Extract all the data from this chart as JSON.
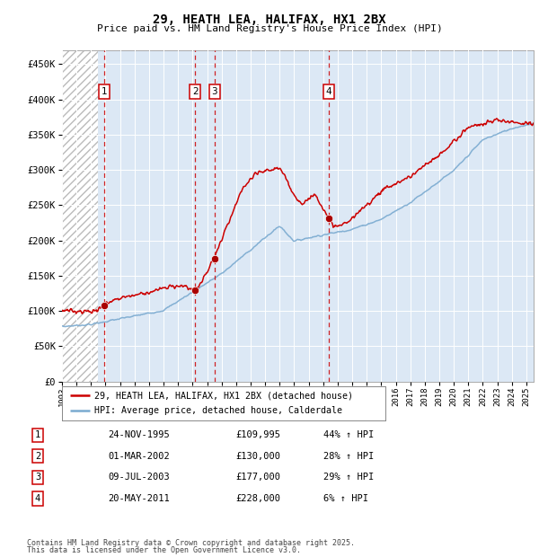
{
  "title": "29, HEATH LEA, HALIFAX, HX1 2BX",
  "subtitle": "Price paid vs. HM Land Registry's House Price Index (HPI)",
  "ylabel_ticks": [
    "£0",
    "£50K",
    "£100K",
    "£150K",
    "£200K",
    "£250K",
    "£300K",
    "£350K",
    "£400K",
    "£450K"
  ],
  "ytick_values": [
    0,
    50000,
    100000,
    150000,
    200000,
    250000,
    300000,
    350000,
    400000,
    450000
  ],
  "ylim": [
    0,
    470000
  ],
  "xlim_start": 1993.0,
  "xlim_end": 2025.5,
  "hatch_end": 1995.5,
  "transactions": [
    {
      "num": 1,
      "date_str": "24-NOV-1995",
      "price": 109995,
      "pct": "44%",
      "year": 1995.9
    },
    {
      "num": 2,
      "date_str": "01-MAR-2002",
      "price": 130000,
      "pct": "28%",
      "year": 2002.17
    },
    {
      "num": 3,
      "date_str": "09-JUL-2003",
      "price": 177000,
      "pct": "29%",
      "year": 2003.52
    },
    {
      "num": 4,
      "date_str": "20-MAY-2011",
      "price": 228000,
      "pct": "6%",
      "year": 2011.38
    }
  ],
  "legend_red": "29, HEATH LEA, HALIFAX, HX1 2BX (detached house)",
  "legend_blue": "HPI: Average price, detached house, Calderdale",
  "footer1": "Contains HM Land Registry data © Crown copyright and database right 2025.",
  "footer2": "This data is licensed under the Open Government Licence v3.0.",
  "red_color": "#cc0000",
  "blue_color": "#7aaad0",
  "dot_color": "#aa0000",
  "plot_bg": "#dce8f5",
  "hatch_bg": "#ffffff"
}
